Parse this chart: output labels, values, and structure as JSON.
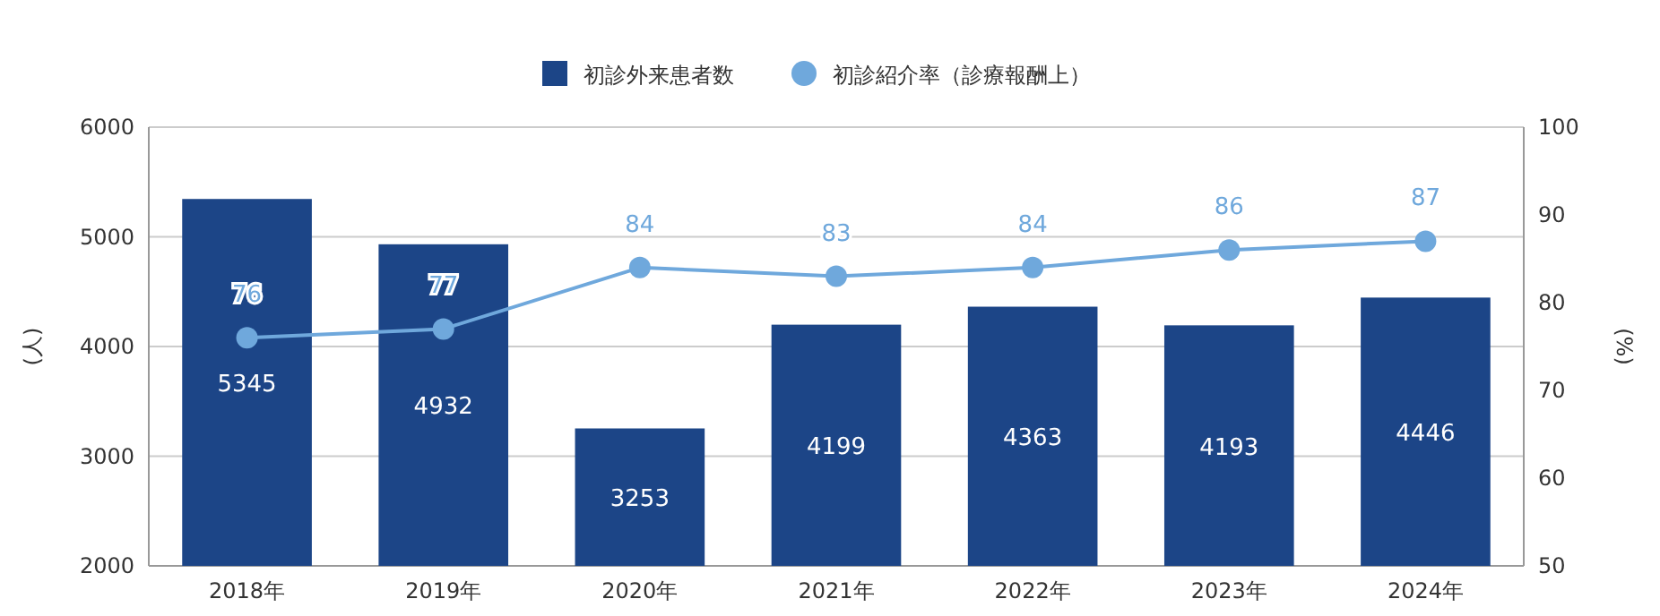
{
  "chart_data": {
    "type": "bar",
    "categories": [
      "2018年",
      "2019年",
      "2020年",
      "2021年",
      "2022年",
      "2023年",
      "2024年"
    ],
    "series": [
      {
        "name": "初診外来患者数",
        "color": "#1c4587",
        "values": [
          5345,
          4932,
          3253,
          4199,
          4363,
          4193,
          4446
        ]
      },
      {
        "name": "初診紹介率（診療報酬上）",
        "type": "line",
        "axis": "y2",
        "marker": "circle",
        "color": "#6fa8dc",
        "values": [
          76,
          77,
          84,
          83,
          84,
          86,
          87
        ]
      }
    ],
    "ylim": [
      2000,
      6000
    ],
    "yticks": [
      2000,
      3000,
      4000,
      5000,
      6000
    ],
    "y2lim": [
      50,
      100
    ],
    "y2ticks": [
      50,
      60,
      70,
      80,
      90,
      100
    ],
    "ylabel": "(人)",
    "y2label": "(%)",
    "legend": "top",
    "grid": "y",
    "data_labels": true
  }
}
